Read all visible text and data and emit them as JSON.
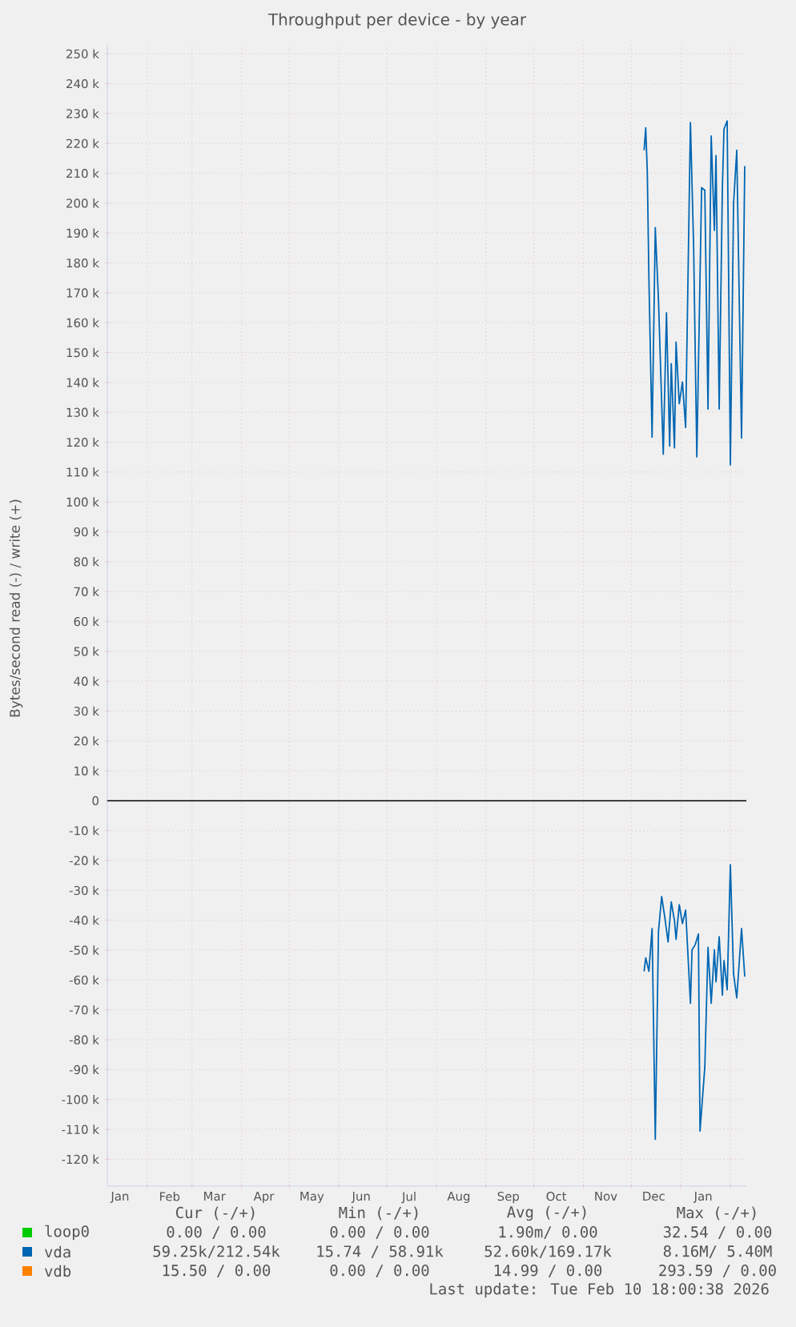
{
  "chart_data": {
    "type": "line",
    "title": "Throughput per device - by year",
    "ylabel": "Bytes/second read (-) / write (+)",
    "xlim": [
      "2025-01-07",
      "2026-02-11"
    ],
    "xticks": [
      {
        "value": "2025-01-15",
        "label": "Jan"
      },
      {
        "value": "2025-02-01",
        "label": null
      },
      {
        "value": "2025-02-15",
        "label": "Feb"
      },
      {
        "value": "2025-03-01",
        "label": null
      },
      {
        "value": "2025-03-15",
        "label": "Mar"
      },
      {
        "value": "2025-04-01",
        "label": null
      },
      {
        "value": "2025-04-15",
        "label": "Apr"
      },
      {
        "value": "2025-05-01",
        "label": null
      },
      {
        "value": "2025-05-15",
        "label": "May"
      },
      {
        "value": "2025-06-01",
        "label": null
      },
      {
        "value": "2025-06-15",
        "label": "Jun"
      },
      {
        "value": "2025-07-01",
        "label": null
      },
      {
        "value": "2025-07-15",
        "label": "Jul"
      },
      {
        "value": "2025-08-01",
        "label": null
      },
      {
        "value": "2025-08-15",
        "label": "Aug"
      },
      {
        "value": "2025-09-01",
        "label": null
      },
      {
        "value": "2025-09-15",
        "label": "Sep"
      },
      {
        "value": "2025-10-01",
        "label": null
      },
      {
        "value": "2025-10-15",
        "label": "Oct"
      },
      {
        "value": "2025-11-01",
        "label": null
      },
      {
        "value": "2025-11-15",
        "label": "Nov"
      },
      {
        "value": "2025-12-01",
        "label": null
      },
      {
        "value": "2025-12-15",
        "label": "Dec"
      },
      {
        "value": "2026-01-01",
        "label": null
      },
      {
        "value": "2026-01-15",
        "label": "Jan"
      },
      {
        "value": "2026-02-01",
        "label": null
      }
    ],
    "ylim": [
      -129000,
      253000
    ],
    "yticks": [
      {
        "value": -120000,
        "label": "-120 k"
      },
      {
        "value": -110000,
        "label": "-110 k"
      },
      {
        "value": -100000,
        "label": "-100 k"
      },
      {
        "value": -90000,
        "label": "-90 k"
      },
      {
        "value": -80000,
        "label": "-80 k"
      },
      {
        "value": -70000,
        "label": "-70 k"
      },
      {
        "value": -60000,
        "label": "-60 k"
      },
      {
        "value": -50000,
        "label": "-50 k"
      },
      {
        "value": -40000,
        "label": "-40 k"
      },
      {
        "value": -30000,
        "label": "-30 k"
      },
      {
        "value": -20000,
        "label": "-20 k"
      },
      {
        "value": -10000,
        "label": "-10 k"
      },
      0,
      {
        "value": 10000,
        "label": "10 k"
      },
      {
        "value": 20000,
        "label": "20 k"
      },
      {
        "value": 30000,
        "label": "30 k"
      },
      {
        "value": 40000,
        "label": "40 k"
      },
      {
        "value": 50000,
        "label": "50 k"
      },
      {
        "value": 60000,
        "label": "60 k"
      },
      {
        "value": 70000,
        "label": "70 k"
      },
      {
        "value": 80000,
        "label": "80 k"
      },
      {
        "value": 90000,
        "label": "90 k"
      },
      {
        "value": 100000,
        "label": "100 k"
      },
      {
        "value": 110000,
        "label": "110 k"
      },
      {
        "value": 120000,
        "label": "120 k"
      },
      {
        "value": 130000,
        "label": "130 k"
      },
      {
        "value": 140000,
        "label": "140 k"
      },
      {
        "value": 150000,
        "label": "150 k"
      },
      {
        "value": 160000,
        "label": "160 k"
      },
      {
        "value": 170000,
        "label": "170 k"
      },
      {
        "value": 180000,
        "label": "180 k"
      },
      {
        "value": 190000,
        "label": "190 k"
      },
      {
        "value": 200000,
        "label": "200 k"
      },
      {
        "value": 210000,
        "label": "210 k"
      },
      {
        "value": 220000,
        "label": "220 k"
      },
      {
        "value": 230000,
        "label": "230 k"
      },
      {
        "value": 240000,
        "label": "240 k"
      },
      {
        "value": 250000,
        "label": "250 k"
      }
    ],
    "grid": true,
    "legend": "bottom",
    "ref_lines": [
      {
        "axis": "y",
        "value": 0,
        "color": "#000000"
      }
    ],
    "series": [
      {
        "name": "loop0",
        "color": "#00cc00"
      },
      {
        "name": "vda",
        "color": "#0066b3",
        "x": [
          "2025-12-09",
          "2025-12-10",
          "2025-12-11",
          "2025-12-12",
          "2025-12-14",
          "2025-12-16",
          "2025-12-18",
          "2025-12-21",
          "2025-12-23",
          "2025-12-25",
          "2025-12-26",
          "2025-12-28",
          "2025-12-29",
          "2025-12-31",
          "2026-01-02",
          "2026-01-04",
          "2026-01-07",
          "2026-01-09",
          "2026-01-11",
          "2026-01-14",
          "2026-01-16",
          "2026-01-18",
          "2026-01-20",
          "2026-01-22",
          "2026-01-23",
          "2026-01-25",
          "2026-01-27",
          "2026-01-28",
          "2026-01-30",
          "2026-02-01",
          "2026-02-03",
          "2026-02-05",
          "2026-02-08",
          "2026-02-10"
        ],
        "values": [
          217700,
          225200,
          210500,
          175000,
          121700,
          191800,
          167700,
          116000,
          163300,
          118700,
          146300,
          118100,
          153500,
          132900,
          140100,
          124900,
          227000,
          185600,
          115100,
          205200,
          204300,
          131100,
          222500,
          190900,
          215900,
          131100,
          205200,
          224800,
          227500,
          112400,
          199800,
          217700,
          121400,
          212400
        ]
      },
      {
        "color": "#0066b3",
        "x": [
          "2025-12-09",
          "2025-12-10",
          "2025-12-12",
          "2025-12-14",
          "2025-12-16",
          "2025-12-18",
          "2025-12-20",
          "2025-12-22",
          "2025-12-24",
          "2025-12-26",
          "2025-12-28",
          "2025-12-29",
          "2025-12-31",
          "2026-01-02",
          "2026-01-04",
          "2026-01-07",
          "2026-01-08",
          "2026-01-10",
          "2026-01-12",
          "2026-01-13",
          "2026-01-16",
          "2026-01-18",
          "2026-01-20",
          "2026-01-22",
          "2026-01-23",
          "2026-01-25",
          "2026-01-27",
          "2026-01-28",
          "2026-01-30",
          "2026-02-01",
          "2026-02-03",
          "2026-02-05",
          "2026-02-08",
          "2026-02-10"
        ],
        "values": [
          -57100,
          -52600,
          -57100,
          -42800,
          -113300,
          -43700,
          -32100,
          -39200,
          -47300,
          -33900,
          -40100,
          -46400,
          -34800,
          -41100,
          -36600,
          -67800,
          -49900,
          -48200,
          -44600,
          -110600,
          -89200,
          -49100,
          -67800,
          -49900,
          -60600,
          -45500,
          -65100,
          -53500,
          -63300,
          -21400,
          -58000,
          -66000,
          -42800,
          -58900
        ]
      },
      {
        "name": "vdb",
        "color": "#ff8000"
      }
    ],
    "annotations": [
      "Cur (-/+)",
      "Min (-/+)",
      "Avg (-/+)",
      "Max (-/+)",
      "0.00 /  0.00",
      "0.00 /  0.00",
      "1.90m/  0.00",
      "32.54 /  0.00",
      "59.25k/212.54k",
      "15.74 / 58.91k",
      "52.60k/169.17k",
      "8.16M/  5.40M",
      "15.50 /  0.00",
      "0.00 /  0.00",
      "14.99 /  0.00",
      "293.59 /  0.00",
      "Last update: Tue Feb 10 18:00:38 2026"
    ]
  }
}
